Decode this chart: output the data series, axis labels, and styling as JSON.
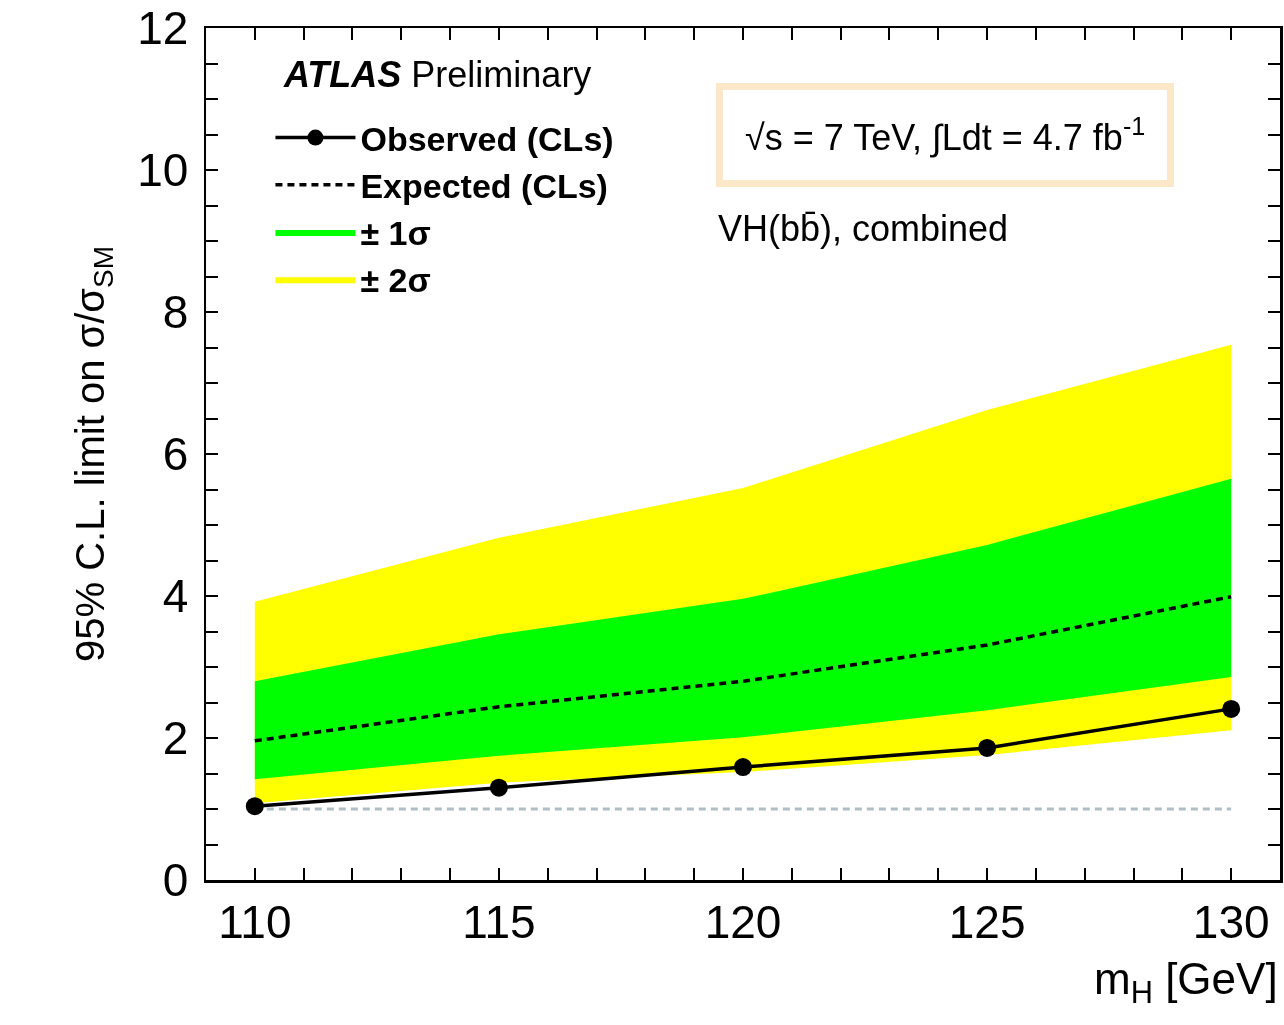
{
  "chart_data": {
    "type": "line",
    "xlabel": "m$_{H}$ [GeV]",
    "ylabel": "95% C.L. limit on σ/σ$_{SM}$",
    "x": [
      110,
      115,
      120,
      125,
      130
    ],
    "xlim": [
      109,
      131
    ],
    "xticks": [
      110,
      {
        "value": 111,
        "label": null
      },
      {
        "value": 112,
        "label": null
      },
      {
        "value": 113,
        "label": null
      },
      {
        "value": 114,
        "label": null
      },
      115,
      {
        "value": 116,
        "label": null
      },
      {
        "value": 117,
        "label": null
      },
      {
        "value": 118,
        "label": null
      },
      {
        "value": 119,
        "label": null
      },
      120,
      {
        "value": 121,
        "label": null
      },
      {
        "value": 122,
        "label": null
      },
      {
        "value": 123,
        "label": null
      },
      {
        "value": 124,
        "label": null
      },
      125,
      {
        "value": 126,
        "label": null
      },
      {
        "value": 127,
        "label": null
      },
      {
        "value": 128,
        "label": null
      },
      {
        "value": 129,
        "label": null
      },
      130
    ],
    "ylim": [
      0,
      12
    ],
    "yticks": [
      0,
      {
        "value": 0.5,
        "label": null
      },
      {
        "value": 1,
        "label": null
      },
      {
        "value": 1.5,
        "label": null
      },
      2,
      {
        "value": 2.5,
        "label": null
      },
      {
        "value": 3,
        "label": null
      },
      {
        "value": 3.5,
        "label": null
      },
      4,
      {
        "value": 4.5,
        "label": null
      },
      {
        "value": 5,
        "label": null
      },
      {
        "value": 5.5,
        "label": null
      },
      6,
      {
        "value": 6.5,
        "label": null
      },
      {
        "value": 7,
        "label": null
      },
      {
        "value": 7.5,
        "label": null
      },
      8,
      {
        "value": 8.5,
        "label": null
      },
      {
        "value": 9,
        "label": null
      },
      {
        "value": 9.5,
        "label": null
      },
      10,
      {
        "value": 10.5,
        "label": null
      },
      {
        "value": 11,
        "label": null
      },
      {
        "value": 11.5,
        "label": null
      },
      12
    ],
    "series": [
      {
        "name": "Observed (CLs)",
        "type": "line",
        "color": "#000000",
        "marker": "circle",
        "line_style": "solid",
        "values": [
          1.04,
          1.3,
          1.59,
          1.86,
          2.41
        ]
      },
      {
        "name": "Expected (CLs)",
        "type": "line",
        "color": "#000000",
        "marker": "none",
        "line_style": "dashed",
        "values": [
          1.96,
          2.44,
          2.8,
          3.31,
          3.99
        ]
      },
      {
        "name": "± 1σ",
        "type": "area",
        "color": "#00ff00",
        "values": [
          null,
          null,
          null,
          null,
          null
        ],
        "lower": [
          1.42,
          1.75,
          2.01,
          2.39,
          2.86
        ],
        "upper": [
          2.8,
          3.46,
          3.96,
          4.72,
          5.65
        ]
      },
      {
        "name": "± 2σ",
        "type": "area",
        "color": "#ffff00",
        "values": [
          null,
          null,
          null,
          null,
          null
        ],
        "lower": [
          1.08,
          1.37,
          1.52,
          1.76,
          2.11
        ],
        "upper": [
          3.92,
          4.82,
          5.52,
          6.62,
          7.54
        ]
      }
    ],
    "ref_lines": [
      {
        "axis": "y",
        "value": 1,
        "color": "#b0bec5",
        "line_style": "dashed"
      }
    ],
    "annotations": [
      "ATLAS Preliminary",
      "√s = 7 TeV, ∫Ldt = 4.7 fb$^{-1}$",
      "VH(bb̄), combined"
    ],
    "legend": "top left",
    "grid": false
  }
}
